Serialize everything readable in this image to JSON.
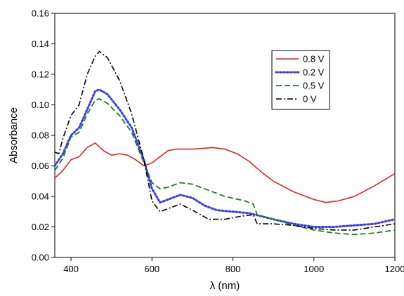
{
  "chart_data": {
    "type": "line",
    "title": "",
    "xlabel": "λ (nm)",
    "ylabel": "Absorbance",
    "xlim": [
      360,
      1200
    ],
    "ylim": [
      0,
      0.16
    ],
    "x_ticks": [
      400,
      600,
      800,
      1000,
      1200
    ],
    "y_ticks": [
      0.0,
      0.02,
      0.04,
      0.06,
      0.08,
      0.1,
      0.12,
      0.14,
      0.16
    ],
    "x_tick_labels": [
      "400",
      "600",
      "800",
      "1000",
      "1200"
    ],
    "y_tick_labels": [
      "0.00",
      "0.02",
      "0.04",
      "0.06",
      "0.08",
      "0.10",
      "0.12",
      "0.14",
      "0.16"
    ],
    "grid": false,
    "legend_position": "top-right",
    "series": [
      {
        "name": "0.8 V",
        "color": "#e8201c",
        "dash": "solid",
        "points": [
          [
            360,
            0.052
          ],
          [
            380,
            0.057
          ],
          [
            400,
            0.064
          ],
          [
            420,
            0.066
          ],
          [
            440,
            0.072
          ],
          [
            460,
            0.075
          ],
          [
            480,
            0.07
          ],
          [
            500,
            0.067
          ],
          [
            520,
            0.068
          ],
          [
            540,
            0.067
          ],
          [
            560,
            0.064
          ],
          [
            580,
            0.06
          ],
          [
            600,
            0.062
          ],
          [
            620,
            0.066
          ],
          [
            640,
            0.07
          ],
          [
            660,
            0.071
          ],
          [
            700,
            0.071
          ],
          [
            750,
            0.072
          ],
          [
            780,
            0.071
          ],
          [
            810,
            0.068
          ],
          [
            840,
            0.063
          ],
          [
            870,
            0.056
          ],
          [
            900,
            0.05
          ],
          [
            950,
            0.043
          ],
          [
            1000,
            0.038
          ],
          [
            1030,
            0.036
          ],
          [
            1060,
            0.037
          ],
          [
            1100,
            0.04
          ],
          [
            1150,
            0.047
          ],
          [
            1200,
            0.055
          ]
        ]
      },
      {
        "name": "0.2 V",
        "color": "#3a3af0",
        "dash": "dotted",
        "points": [
          [
            360,
            0.06
          ],
          [
            380,
            0.068
          ],
          [
            400,
            0.08
          ],
          [
            420,
            0.085
          ],
          [
            440,
            0.097
          ],
          [
            460,
            0.109
          ],
          [
            470,
            0.11
          ],
          [
            490,
            0.107
          ],
          [
            520,
            0.097
          ],
          [
            550,
            0.085
          ],
          [
            580,
            0.064
          ],
          [
            600,
            0.045
          ],
          [
            620,
            0.036
          ],
          [
            640,
            0.038
          ],
          [
            670,
            0.041
          ],
          [
            700,
            0.039
          ],
          [
            730,
            0.034
          ],
          [
            760,
            0.031
          ],
          [
            800,
            0.03
          ],
          [
            840,
            0.029
          ],
          [
            870,
            0.027
          ],
          [
            900,
            0.025
          ],
          [
            950,
            0.022
          ],
          [
            1000,
            0.02
          ],
          [
            1050,
            0.02
          ],
          [
            1100,
            0.021
          ],
          [
            1150,
            0.022
          ],
          [
            1200,
            0.025
          ]
        ]
      },
      {
        "name": "0.5 V",
        "color": "#1a7d1a",
        "dash": "dashed",
        "points": [
          [
            360,
            0.057
          ],
          [
            380,
            0.065
          ],
          [
            400,
            0.079
          ],
          [
            420,
            0.082
          ],
          [
            440,
            0.094
          ],
          [
            460,
            0.103
          ],
          [
            470,
            0.104
          ],
          [
            490,
            0.101
          ],
          [
            520,
            0.093
          ],
          [
            550,
            0.082
          ],
          [
            580,
            0.062
          ],
          [
            600,
            0.049
          ],
          [
            620,
            0.045
          ],
          [
            640,
            0.046
          ],
          [
            670,
            0.049
          ],
          [
            700,
            0.048
          ],
          [
            740,
            0.044
          ],
          [
            780,
            0.04
          ],
          [
            830,
            0.037
          ],
          [
            850,
            0.035
          ],
          [
            860,
            0.028
          ],
          [
            900,
            0.025
          ],
          [
            950,
            0.021
          ],
          [
            1000,
            0.018
          ],
          [
            1050,
            0.016
          ],
          [
            1100,
            0.015
          ],
          [
            1150,
            0.016
          ],
          [
            1200,
            0.018
          ]
        ]
      },
      {
        "name": "0 V",
        "color": "#000000",
        "dash": "dashdot",
        "points": [
          [
            360,
            0.069
          ],
          [
            370,
            0.068
          ],
          [
            380,
            0.078
          ],
          [
            400,
            0.093
          ],
          [
            420,
            0.1
          ],
          [
            440,
            0.12
          ],
          [
            460,
            0.132
          ],
          [
            470,
            0.135
          ],
          [
            490,
            0.131
          ],
          [
            520,
            0.116
          ],
          [
            550,
            0.094
          ],
          [
            580,
            0.064
          ],
          [
            600,
            0.037
          ],
          [
            620,
            0.03
          ],
          [
            650,
            0.033
          ],
          [
            670,
            0.035
          ],
          [
            700,
            0.031
          ],
          [
            740,
            0.025
          ],
          [
            780,
            0.025
          ],
          [
            820,
            0.027
          ],
          [
            850,
            0.028
          ],
          [
            860,
            0.022
          ],
          [
            900,
            0.022
          ],
          [
            950,
            0.021
          ],
          [
            1000,
            0.019
          ],
          [
            1050,
            0.018
          ],
          [
            1100,
            0.018
          ],
          [
            1150,
            0.02
          ],
          [
            1200,
            0.022
          ]
        ]
      }
    ]
  }
}
